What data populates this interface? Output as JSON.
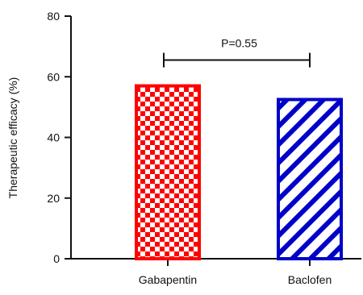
{
  "chart_data": {
    "type": "bar",
    "categories": [
      "Gabapentin",
      "Baclofen"
    ],
    "values": [
      57,
      52.5
    ],
    "ylabel": "Therapeutic efficacy (%)",
    "xlabel": "",
    "ylim": [
      0,
      80
    ],
    "yticks": [
      "0",
      "20",
      "40",
      "60",
      "80"
    ],
    "grid": false,
    "bar_styles": [
      {
        "pattern": "checkerboard",
        "color": "#ff0000"
      },
      {
        "pattern": "diagonal-hatch",
        "color": "#0000c8"
      }
    ],
    "annotation": {
      "text": "P=0.55",
      "bracket_value": 65.5
    }
  }
}
